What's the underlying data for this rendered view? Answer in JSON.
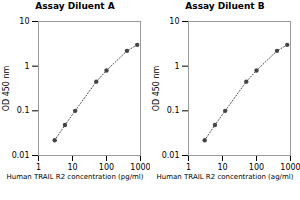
{
  "chart_data": [
    {
      "type": "line",
      "title": "Assay Diluent A",
      "xlabel": "Human TRAIL R2 concentration (pg/ml)",
      "ylabel": "OD 450 nm",
      "x": [
        3,
        6,
        12,
        50,
        100,
        400,
        800
      ],
      "values": [
        0.022,
        0.048,
        0.1,
        0.45,
        0.8,
        2.2,
        3.0
      ],
      "color": "#444444",
      "marker": "circle",
      "line_style": "dotted",
      "log": true,
      "xlim": [
        1,
        1000
      ],
      "ylim": [
        0.01,
        10
      ],
      "xticks": [
        1,
        10,
        100,
        1000
      ],
      "yticks": [
        0.01,
        0.1,
        1,
        10
      ]
    },
    {
      "type": "line",
      "title": "Assay Diluent B",
      "xlabel": "Human TRAIL R2 concentration (ag/ml)",
      "ylabel": "OD 450 nm",
      "x": [
        3,
        6,
        12,
        50,
        100,
        400,
        800
      ],
      "values": [
        0.022,
        0.048,
        0.1,
        0.45,
        0.8,
        2.2,
        3.0
      ],
      "color": "#444444",
      "marker": "circle",
      "line_style": "dotted",
      "log": true,
      "xlim": [
        1,
        1000
      ],
      "ylim": [
        0.01,
        10
      ],
      "xticks": [
        1,
        10,
        100,
        1000
      ],
      "yticks": [
        0.01,
        0.1,
        1,
        10
      ]
    }
  ]
}
